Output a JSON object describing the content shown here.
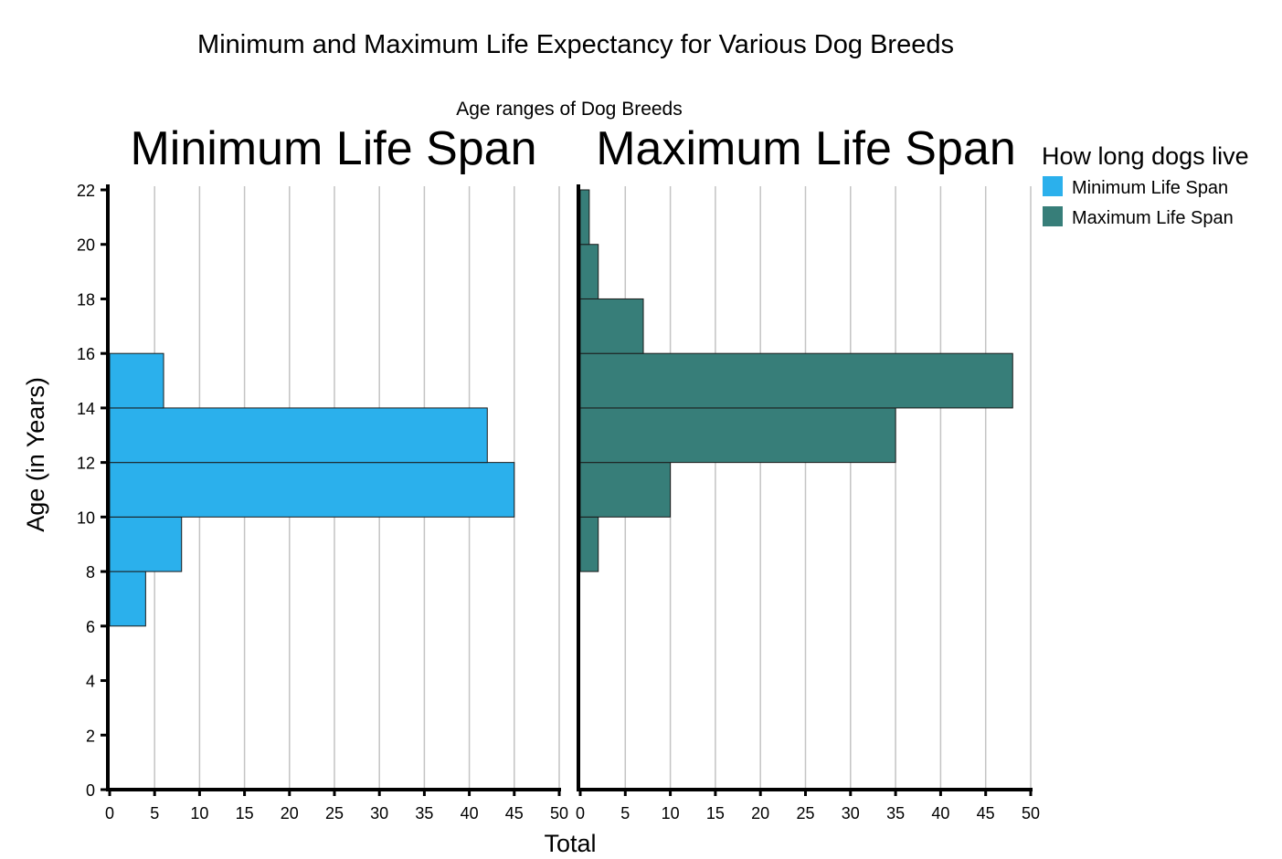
{
  "chart_data": {
    "type": "bar",
    "orientation": "horizontal",
    "title": "Minimum and Maximum Life Expectancy for Various Dog Breeds",
    "subtitle": "Age ranges of Dog Breeds",
    "xlabel": "Total",
    "ylabel": "Age (in Years)",
    "xlim": [
      0,
      50
    ],
    "ylim": [
      0,
      22
    ],
    "x_ticks": [
      0,
      5,
      10,
      15,
      20,
      25,
      30,
      35,
      40,
      45,
      50
    ],
    "y_ticks": [
      0,
      2,
      4,
      6,
      8,
      10,
      12,
      14,
      16,
      18,
      20,
      22
    ],
    "grid": "vertical",
    "legend_position": "right",
    "legend_title": "How long dogs live",
    "panels": [
      {
        "name": "Minimum Life Span",
        "color": "#2bb0ec",
        "bins": [
          {
            "from": 6,
            "to": 8,
            "value": 4
          },
          {
            "from": 8,
            "to": 10,
            "value": 8
          },
          {
            "from": 10,
            "to": 12,
            "value": 45
          },
          {
            "from": 12,
            "to": 14,
            "value": 42
          },
          {
            "from": 14,
            "to": 16,
            "value": 6
          }
        ]
      },
      {
        "name": "Maximum Life Span",
        "color": "#377e79",
        "bins": [
          {
            "from": 8,
            "to": 10,
            "value": 2
          },
          {
            "from": 10,
            "to": 12,
            "value": 10
          },
          {
            "from": 12,
            "to": 14,
            "value": 35
          },
          {
            "from": 14,
            "to": 16,
            "value": 48
          },
          {
            "from": 16,
            "to": 18,
            "value": 7
          },
          {
            "from": 18,
            "to": 20,
            "value": 2
          },
          {
            "from": 20,
            "to": 22,
            "value": 1
          }
        ]
      }
    ]
  }
}
